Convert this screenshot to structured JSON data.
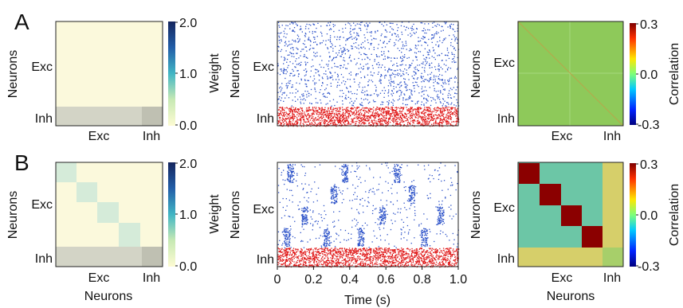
{
  "panel_labels": [
    "A",
    "B"
  ],
  "weight_matrix": {
    "ylabel": "Neurons",
    "yticks": [
      "Exc",
      "Inh"
    ],
    "xticks": [
      "Exc",
      "Inh"
    ],
    "xlabel": "Neurons",
    "colorbar_label": "Weight",
    "colorbar_ticks": [
      "2.0",
      "1.0",
      "0.0"
    ]
  },
  "raster": {
    "ylabel": "Neurons",
    "yticks": [
      "Exc",
      "Inh"
    ],
    "xlabel": "Time (s)",
    "xticks": [
      "0",
      "0.2",
      "0.4",
      "0.6",
      "0.8",
      "1.0"
    ]
  },
  "correlation": {
    "ylabel": "Neurons",
    "yticks": [
      "Exc",
      "Inh"
    ],
    "xticks": [
      "Exc",
      "Inh"
    ],
    "xlabel": "Neurons",
    "colorbar_label": "Correlation",
    "colorbar_ticks": [
      "0.3",
      "0.0",
      "-0.3"
    ]
  },
  "colors": {
    "exc_spike": "#2a50c8",
    "inh_spike": "#e01818",
    "weight_background": "#fbf9dc",
    "weight_cluster": "#d5ebd9",
    "weight_inh": "#d3d4c6",
    "corr_background": "#8ec95a",
    "corr_background_B": "#6cc6a6",
    "corr_cluster": "#8b0000"
  },
  "chart_data": [
    {
      "type": "heatmap",
      "panel": "A",
      "title": "",
      "xlabel": "",
      "ylabel": "Neurons",
      "colorbar": "Weight",
      "clim": [
        0,
        2
      ],
      "structure": "uniform excitatory weights, inhibitory rows stronger"
    },
    {
      "type": "scatter",
      "panel": "A",
      "title": "",
      "xlabel": "",
      "ylabel": "Neurons",
      "xlim": [
        0,
        1
      ],
      "series": [
        {
          "name": "Exc",
          "pattern": "uniform random spikes"
        },
        {
          "name": "Inh",
          "pattern": "dense uniform spikes"
        }
      ]
    },
    {
      "type": "heatmap",
      "panel": "A",
      "title": "",
      "xlabel": "",
      "ylabel": "Neurons",
      "colorbar": "Correlation",
      "clim": [
        -0.3,
        0.3
      ],
      "structure": "near-zero correlations everywhere"
    },
    {
      "type": "heatmap",
      "panel": "B",
      "title": "",
      "xlabel": "Neurons",
      "ylabel": "Neurons",
      "colorbar": "Weight",
      "clim": [
        0,
        2
      ],
      "clusters": 5
    },
    {
      "type": "scatter",
      "panel": "B",
      "title": "",
      "xlabel": "Time (s)",
      "ylabel": "Neurons",
      "xlim": [
        0,
        1
      ],
      "series": [
        {
          "name": "Exc",
          "pattern": "clustered bursts"
        },
        {
          "name": "Inh",
          "pattern": "dense uniform spikes"
        }
      ]
    },
    {
      "type": "heatmap",
      "panel": "B",
      "title": "",
      "xlabel": "Neurons",
      "ylabel": "Neurons",
      "colorbar": "Correlation",
      "clim": [
        -0.3,
        0.3
      ],
      "clusters": 4
    }
  ]
}
